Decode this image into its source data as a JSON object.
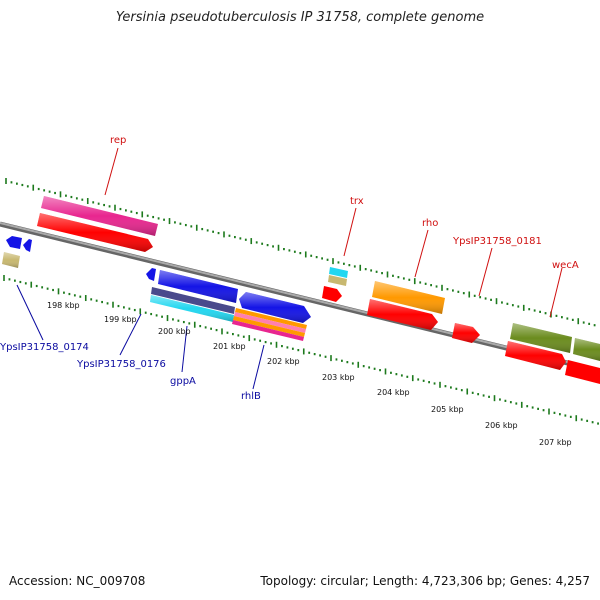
{
  "title": "Yersinia pseudotuberculosis IP 31758, complete genome",
  "accession_text": "Accession: NC_009708",
  "summary_text": "Topology: circular; Length: 4,723,306 bp; Genes: 4,257",
  "ruler_labels": [
    "198 kbp",
    "199 kbp",
    "200 kbp",
    "201 kbp",
    "202 kbp",
    "203 kbp",
    "204 kbp",
    "205 kbp",
    "206 kbp",
    "207 kbp"
  ],
  "genes_top": [
    {
      "key": "rep",
      "label": "rep"
    },
    {
      "key": "trx",
      "label": "trx"
    },
    {
      "key": "rho",
      "label": "rho"
    },
    {
      "key": "ypsip31758_0181",
      "label": "YpsIP31758_0181"
    },
    {
      "key": "weca",
      "label": "wecA"
    }
  ],
  "genes_bottom": [
    {
      "key": "ypsip31758_0174",
      "label": "YpsIP31758_0174"
    },
    {
      "key": "ypsip31758_0176",
      "label": "YpsIP31758_0176"
    },
    {
      "key": "gppa",
      "label": "gppA"
    },
    {
      "key": "rhlb",
      "label": "rhlB"
    }
  ],
  "colors": {
    "top_label": "#d01010",
    "bottom_label": "#0a0aa0",
    "tick": "#1d7a1d",
    "backbone": "#888888",
    "magenta": "#e8268f",
    "red": "#ff0000",
    "blue": "#1414e6",
    "orange": "#ff9900",
    "olive": "#6b8c1e",
    "tan": "#c8b870",
    "cyan": "#22d7f0",
    "slate": "#4a4a8c"
  }
}
